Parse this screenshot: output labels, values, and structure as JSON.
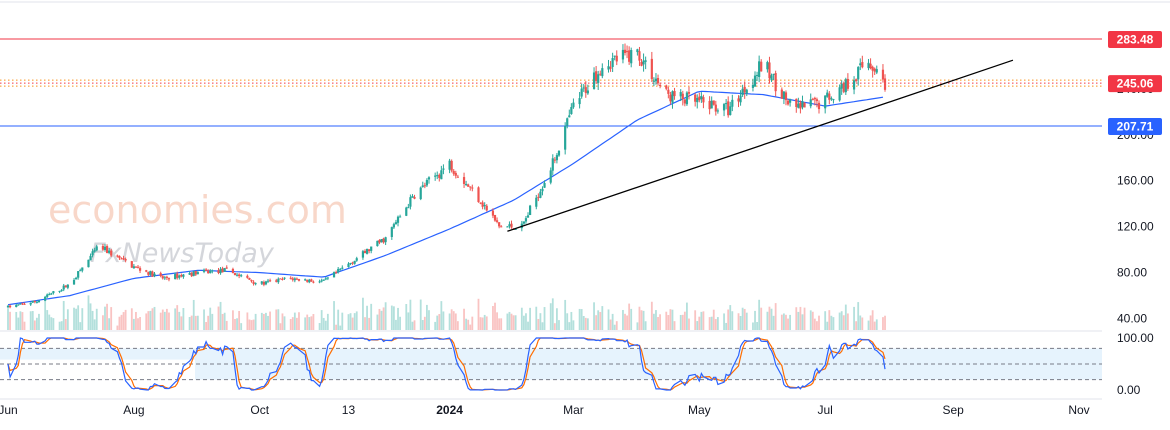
{
  "watermark": {
    "brand": "economies.com",
    "sub": "FxNewsToday"
  },
  "colors": {
    "up": "#26a69a",
    "down": "#ef5350",
    "ma": "#2962ff",
    "resistance": "#f23645",
    "support": "#2962ff",
    "dotted": "#f7931a",
    "trendline": "#000000",
    "stoch_k": "#2962ff",
    "stoch_d": "#ff6d00",
    "stoch_band": "#e3f2fd",
    "grid": "#e0e3eb"
  },
  "chart_data": {
    "type": "candlestick",
    "title": "",
    "price_axis": {
      "ylim": [
        30,
        300
      ],
      "ticks": [
        "40.00",
        "80.00",
        "120.00",
        "160.00",
        "200.00",
        "240.00"
      ]
    },
    "time_axis": {
      "labels": [
        "Jun",
        "Aug",
        "Oct",
        "13",
        "2024",
        "Mar",
        "May",
        "Jul",
        "Sep",
        "Nov"
      ],
      "bold": [
        "2024"
      ]
    },
    "levels": [
      {
        "name": "resistance",
        "value": 283.48,
        "label": "283.48",
        "style": "solid",
        "color": "#f23645"
      },
      {
        "name": "middle",
        "value": 245.06,
        "label": "245.06",
        "style": "dotted",
        "color": "#f23645"
      },
      {
        "name": "support",
        "value": 207.71,
        "label": "207.71",
        "style": "solid",
        "color": "#2962ff"
      }
    ],
    "trendline": {
      "start": {
        "date": "2024-01-29",
        "price": 116
      },
      "end": {
        "date": "2024-09-30",
        "price": 265
      }
    },
    "price_anchors": [
      [
        "2023-06-01",
        50
      ],
      [
        "2023-06-15",
        55
      ],
      [
        "2023-07-01",
        70
      ],
      [
        "2023-07-15",
        103
      ],
      [
        "2023-08-01",
        85
      ],
      [
        "2023-08-15",
        75
      ],
      [
        "2023-09-01",
        80
      ],
      [
        "2023-09-15",
        82
      ],
      [
        "2023-10-01",
        70
      ],
      [
        "2023-10-15",
        75
      ],
      [
        "2023-11-01",
        72
      ],
      [
        "2023-11-15",
        90
      ],
      [
        "2023-12-01",
        110
      ],
      [
        "2023-12-15",
        148
      ],
      [
        "2024-01-01",
        175
      ],
      [
        "2024-01-15",
        145
      ],
      [
        "2024-01-25",
        120
      ],
      [
        "2024-02-05",
        120
      ],
      [
        "2024-02-20",
        175
      ],
      [
        "2024-03-01",
        225
      ],
      [
        "2024-03-15",
        262
      ],
      [
        "2024-04-01",
        272
      ],
      [
        "2024-04-15",
        235
      ],
      [
        "2024-05-01",
        228
      ],
      [
        "2024-05-15",
        222
      ],
      [
        "2024-06-01",
        262
      ],
      [
        "2024-06-15",
        222
      ],
      [
        "2024-06-28",
        228
      ],
      [
        "2024-07-10",
        242
      ],
      [
        "2024-07-22",
        265
      ],
      [
        "2024-07-30",
        245
      ]
    ],
    "ma_anchors": [
      [
        "2023-06-01",
        52
      ],
      [
        "2023-07-01",
        60
      ],
      [
        "2023-08-01",
        75
      ],
      [
        "2023-09-01",
        82
      ],
      [
        "2023-10-01",
        80
      ],
      [
        "2023-11-01",
        76
      ],
      [
        "2023-12-01",
        95
      ],
      [
        "2024-01-01",
        118
      ],
      [
        "2024-02-01",
        143
      ],
      [
        "2024-03-01",
        175
      ],
      [
        "2024-04-01",
        213
      ],
      [
        "2024-05-01",
        238
      ],
      [
        "2024-06-01",
        235
      ],
      [
        "2024-07-01",
        225
      ],
      [
        "2024-07-30",
        233
      ]
    ],
    "stochastic": {
      "ylim": [
        0,
        100
      ],
      "ticks": [
        "100.00",
        "0.00"
      ],
      "levels": [
        80,
        50,
        20
      ]
    }
  }
}
